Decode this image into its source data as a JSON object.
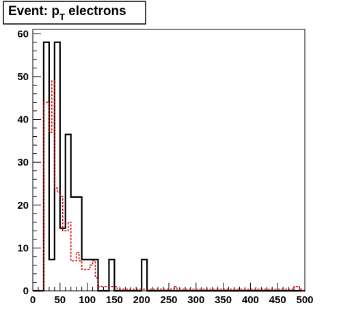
{
  "chart_data": {
    "type": "bar",
    "title": {
      "prefix": "Event: p",
      "subscript": "T",
      "suffix": " electrons"
    },
    "xlabel": "",
    "ylabel": "",
    "xlim": [
      0,
      500
    ],
    "ylim": [
      0,
      61
    ],
    "x_ticks": [
      0,
      50,
      100,
      150,
      200,
      250,
      300,
      350,
      400,
      450,
      500
    ],
    "y_ticks": [
      0,
      10,
      20,
      30,
      40,
      50,
      60
    ],
    "grid": false,
    "legend": "none",
    "series": [
      {
        "style": "solid",
        "color": "#000000",
        "bin_width": 10,
        "bin_edges_start": 0,
        "values": [
          0,
          0,
          58,
          7.3,
          58,
          14.6,
          36.5,
          21.9,
          21.9,
          7.3,
          7.3,
          7.3,
          0,
          0,
          7.3,
          0,
          0,
          0,
          0,
          0,
          7.3,
          0,
          0,
          0,
          0,
          0,
          0,
          0,
          0,
          0,
          0,
          0,
          0,
          0,
          0,
          0,
          0,
          0,
          0,
          0,
          0,
          0,
          0,
          0,
          0,
          0,
          0,
          0,
          0,
          0
        ]
      },
      {
        "style": "dashed",
        "color": "#e00000",
        "bin_width": 5,
        "bin_edges_start": 0,
        "values": [
          0,
          0,
          0,
          0,
          44,
          44,
          37,
          49,
          24,
          23,
          22,
          14,
          14,
          16,
          7,
          7,
          9,
          7,
          5,
          5,
          5,
          6,
          7,
          3,
          1,
          1,
          1,
          1,
          1,
          1,
          1,
          0.4,
          0.4,
          0.4,
          0.4,
          0.4,
          0.4,
          0.4,
          0.4,
          0.4,
          0.4,
          0.4,
          0.4,
          0.4,
          0.4,
          0.4,
          0.4,
          0.4,
          0.4,
          0.4,
          0.4,
          0.4,
          1,
          0.4,
          0.4,
          0.4,
          0.4,
          0.4,
          0.4,
          0.4,
          0.4,
          0.4,
          0.4,
          0.4,
          0.4,
          0.4,
          0.4,
          0.4,
          0.4,
          0.4,
          0.4,
          0.4,
          0.4,
          0.4,
          0.4,
          0.4,
          0.4,
          0.4,
          0.4,
          0.4,
          0.4,
          0.4,
          0.4,
          0.4,
          0.4,
          0.4,
          0.4,
          0.4,
          0.4,
          0.4,
          0.4,
          0.4,
          0.4,
          0.4,
          0.4,
          0.4,
          1,
          1,
          0.4,
          0
        ]
      }
    ]
  }
}
